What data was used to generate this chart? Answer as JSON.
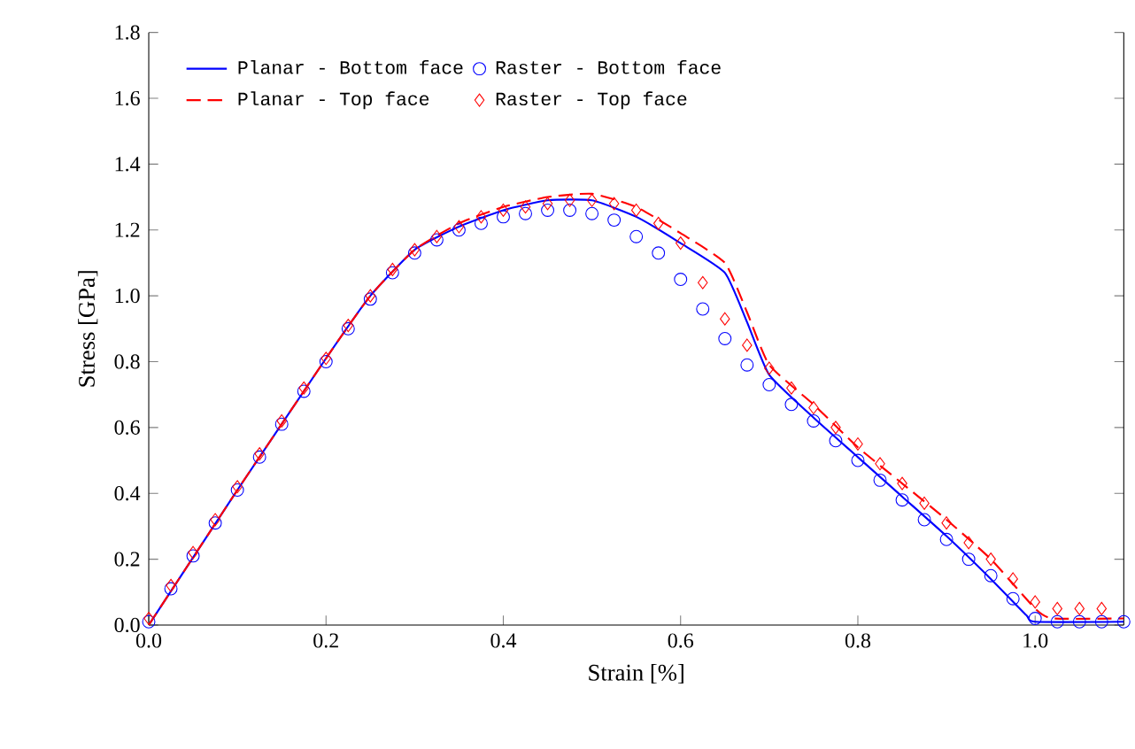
{
  "chart_data": {
    "type": "line",
    "xlabel": "Strain [%]",
    "ylabel": "Stress [GPa]",
    "xlim": [
      0,
      1.1
    ],
    "ylim": [
      0,
      1.8
    ],
    "xticks": [
      {
        "value": 0,
        "label": "0.0"
      },
      {
        "value": 0.2,
        "label": "0.2"
      },
      {
        "value": 0.4,
        "label": "0.4"
      },
      {
        "value": 0.6,
        "label": "0.6"
      },
      {
        "value": 0.8,
        "label": "0.8"
      },
      {
        "value": 1.0,
        "label": "1.0"
      }
    ],
    "yticks": [
      {
        "value": 0,
        "label": "0.0"
      },
      {
        "value": 0.2,
        "label": "0.2"
      },
      {
        "value": 0.4,
        "label": "0.4"
      },
      {
        "value": 0.6,
        "label": "0.6"
      },
      {
        "value": 0.8,
        "label": "0.8"
      },
      {
        "value": 1.0,
        "label": "1.0"
      },
      {
        "value": 1.2,
        "label": "1.2"
      },
      {
        "value": 1.4,
        "label": "1.4"
      },
      {
        "value": 1.6,
        "label": "1.6"
      },
      {
        "value": 1.8,
        "label": "1.8"
      }
    ],
    "legend": "top left",
    "grid": false,
    "series": [
      {
        "name": "Planar - Bottom face",
        "color": "#0000ff",
        "line_style": "solid",
        "marker": "none",
        "x": [
          0,
          0.1,
          0.2,
          0.25,
          0.3,
          0.35,
          0.4,
          0.45,
          0.5,
          0.55,
          0.6,
          0.65,
          0.675,
          0.7,
          0.75,
          0.8,
          0.85,
          0.9,
          0.95,
          0.99,
          1.0,
          1.1
        ],
        "values": [
          0,
          0.41,
          0.81,
          1.0,
          1.14,
          1.21,
          1.26,
          1.29,
          1.29,
          1.24,
          1.16,
          1.07,
          0.92,
          0.76,
          0.63,
          0.51,
          0.39,
          0.27,
          0.14,
          0.03,
          0.01,
          0.01
        ]
      },
      {
        "name": "Raster - Bottom face",
        "type": "scatter",
        "color": "#0000ff",
        "marker": "circle",
        "x": [
          0,
          0.025,
          0.05,
          0.075,
          0.1,
          0.125,
          0.15,
          0.175,
          0.2,
          0.225,
          0.25,
          0.275,
          0.3,
          0.325,
          0.35,
          0.375,
          0.4,
          0.425,
          0.45,
          0.475,
          0.5,
          0.525,
          0.55,
          0.575,
          0.6,
          0.625,
          0.65,
          0.675,
          0.7,
          0.725,
          0.75,
          0.775,
          0.8,
          0.825,
          0.85,
          0.875,
          0.9,
          0.925,
          0.95,
          0.975,
          1.0,
          1.025,
          1.05,
          1.075,
          1.1
        ],
        "values": [
          0.01,
          0.11,
          0.21,
          0.31,
          0.41,
          0.51,
          0.61,
          0.71,
          0.8,
          0.9,
          0.99,
          1.07,
          1.13,
          1.17,
          1.2,
          1.22,
          1.24,
          1.25,
          1.26,
          1.26,
          1.25,
          1.23,
          1.18,
          1.13,
          1.05,
          0.96,
          0.87,
          0.79,
          0.73,
          0.67,
          0.62,
          0.56,
          0.5,
          0.44,
          0.38,
          0.32,
          0.26,
          0.2,
          0.15,
          0.08,
          0.02,
          0.01,
          0.01,
          0.01,
          0.01
        ]
      },
      {
        "name": "Planar - Top face",
        "color": "#ff0000",
        "line_style": "dashed",
        "marker": "none",
        "x": [
          0,
          0.1,
          0.2,
          0.25,
          0.3,
          0.35,
          0.4,
          0.45,
          0.5,
          0.55,
          0.6,
          0.65,
          0.675,
          0.7,
          0.75,
          0.8,
          0.85,
          0.9,
          0.95,
          1.0,
          1.02,
          1.1
        ],
        "values": [
          0,
          0.41,
          0.81,
          1.0,
          1.14,
          1.22,
          1.27,
          1.3,
          1.31,
          1.27,
          1.19,
          1.1,
          0.95,
          0.79,
          0.67,
          0.54,
          0.43,
          0.32,
          0.2,
          0.05,
          0.02,
          0.02
        ]
      },
      {
        "name": "Raster - Top face",
        "type": "scatter",
        "color": "#ff0000",
        "marker": "diamond",
        "x": [
          0,
          0.025,
          0.05,
          0.075,
          0.1,
          0.125,
          0.15,
          0.175,
          0.2,
          0.225,
          0.25,
          0.275,
          0.3,
          0.325,
          0.35,
          0.375,
          0.4,
          0.425,
          0.45,
          0.475,
          0.5,
          0.525,
          0.55,
          0.575,
          0.6,
          0.625,
          0.65,
          0.675,
          0.7,
          0.725,
          0.75,
          0.775,
          0.8,
          0.825,
          0.85,
          0.875,
          0.9,
          0.925,
          0.95,
          0.975,
          1.0,
          1.025,
          1.05,
          1.075
        ],
        "values": [
          0.02,
          0.12,
          0.22,
          0.32,
          0.42,
          0.52,
          0.62,
          0.72,
          0.81,
          0.91,
          1.0,
          1.08,
          1.14,
          1.18,
          1.21,
          1.24,
          1.26,
          1.27,
          1.28,
          1.29,
          1.29,
          1.28,
          1.26,
          1.22,
          1.16,
          1.04,
          0.93,
          0.85,
          0.78,
          0.72,
          0.66,
          0.6,
          0.55,
          0.49,
          0.43,
          0.37,
          0.31,
          0.25,
          0.2,
          0.14,
          0.07,
          0.05,
          0.05,
          0.05
        ]
      }
    ]
  }
}
